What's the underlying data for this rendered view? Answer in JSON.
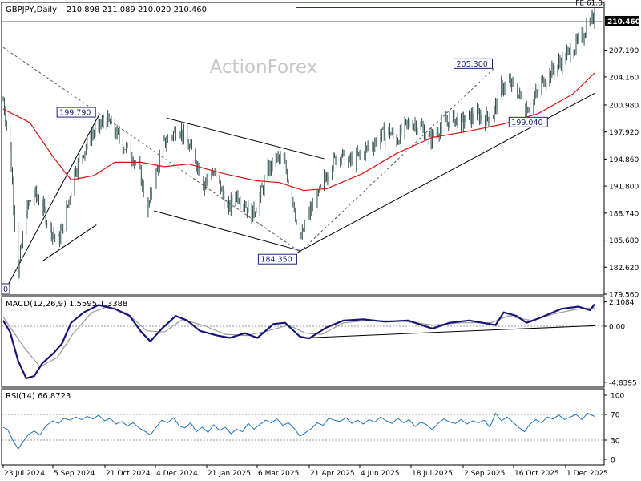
{
  "chart_data": {
    "type": "line",
    "title": "GBPJPY,Daily",
    "ohlc": "210.898 211.089 210.020 210.460",
    "watermark": "ActionForex",
    "x_range": [
      "2024-07-23",
      "2025-12-19"
    ],
    "x_ticks": [
      "23 Jul 2024",
      "5 Sep 2024",
      "21 Oct 2024",
      "4 Dec 2024",
      "21 Jan 2025",
      "6 Mar 2025",
      "21 Apr 2025",
      "4 Jun 2025",
      "18 Jul 2025",
      "2 Sep 2025",
      "16 Oct 2025",
      "1 Dec 2025"
    ],
    "price": {
      "ylim": [
        179.56,
        212.5
      ],
      "y_ticks": [
        "207.190",
        "204.160",
        "200.980",
        "197.920",
        "194.860",
        "191.800",
        "188.740",
        "185.680",
        "182.620",
        "179.560"
      ],
      "last_price": "210.460",
      "fe_label": "FE 61.8",
      "fe_level": 212.0,
      "annotations": [
        {
          "label": "199.790",
          "date": "2024-10-14",
          "value": 199.79
        },
        {
          "label": "184.350",
          "date": "2025-04-07",
          "value": 184.35
        },
        {
          "label": "205.300",
          "date": "2025-09-24",
          "value": 205.3
        },
        {
          "label": "199.040",
          "date": "2025-10-21",
          "value": 199.04
        }
      ],
      "close": [
        [
          "2024-07-23",
          201.5
        ],
        [
          "2024-07-29",
          196.0
        ],
        [
          "2024-08-05",
          182.0
        ],
        [
          "2024-08-12",
          189.0
        ],
        [
          "2024-08-19",
          191.0
        ],
        [
          "2024-08-26",
          189.5
        ],
        [
          "2024-09-02",
          187.0
        ],
        [
          "2024-09-09",
          185.5
        ],
        [
          "2024-09-16",
          189.0
        ],
        [
          "2024-09-23",
          193.5
        ],
        [
          "2024-09-30",
          195.5
        ],
        [
          "2024-10-07",
          197.5
        ],
        [
          "2024-10-14",
          198.5
        ],
        [
          "2024-10-21",
          199.3
        ],
        [
          "2024-10-28",
          198.0
        ],
        [
          "2024-11-04",
          196.5
        ],
        [
          "2024-11-11",
          195.5
        ],
        [
          "2024-11-18",
          194.0
        ],
        [
          "2024-11-25",
          189.0
        ],
        [
          "2024-12-02",
          192.5
        ],
        [
          "2024-12-09",
          196.5
        ],
        [
          "2024-12-16",
          197.5
        ],
        [
          "2024-12-23",
          198.5
        ],
        [
          "2024-12-30",
          196.5
        ],
        [
          "2025-01-06",
          195.0
        ],
        [
          "2025-01-13",
          192.0
        ],
        [
          "2025-01-20",
          193.5
        ],
        [
          "2025-01-27",
          192.0
        ],
        [
          "2025-02-03",
          189.0
        ],
        [
          "2025-02-10",
          191.0
        ],
        [
          "2025-02-17",
          190.0
        ],
        [
          "2025-02-24",
          188.5
        ],
        [
          "2025-03-03",
          190.5
        ],
        [
          "2025-03-10",
          193.5
        ],
        [
          "2025-03-17",
          195.0
        ],
        [
          "2025-03-24",
          194.5
        ],
        [
          "2025-03-31",
          191.0
        ],
        [
          "2025-04-07",
          185.5
        ],
        [
          "2025-04-14",
          188.5
        ],
        [
          "2025-04-21",
          190.0
        ],
        [
          "2025-04-28",
          192.5
        ],
        [
          "2025-05-05",
          194.5
        ],
        [
          "2025-05-12",
          195.5
        ],
        [
          "2025-05-19",
          194.5
        ],
        [
          "2025-05-26",
          195.0
        ],
        [
          "2025-06-02",
          195.8
        ],
        [
          "2025-06-09",
          196.5
        ],
        [
          "2025-06-16",
          197.5
        ],
        [
          "2025-06-23",
          198.0
        ],
        [
          "2025-06-30",
          197.0
        ],
        [
          "2025-07-07",
          198.5
        ],
        [
          "2025-07-14",
          199.0
        ],
        [
          "2025-07-21",
          198.5
        ],
        [
          "2025-07-28",
          197.0
        ],
        [
          "2025-08-04",
          198.0
        ],
        [
          "2025-08-11",
          199.0
        ],
        [
          "2025-08-18",
          199.5
        ],
        [
          "2025-08-25",
          199.0
        ],
        [
          "2025-09-01",
          199.5
        ],
        [
          "2025-09-08",
          199.8
        ],
        [
          "2025-09-15",
          199.5
        ],
        [
          "2025-09-22",
          200.0
        ],
        [
          "2025-09-29",
          203.0
        ],
        [
          "2025-10-06",
          203.5
        ],
        [
          "2025-10-13",
          202.5
        ],
        [
          "2025-10-20",
          200.5
        ],
        [
          "2025-10-27",
          201.5
        ],
        [
          "2025-11-03",
          203.5
        ],
        [
          "2025-11-10",
          204.5
        ],
        [
          "2025-11-17",
          205.5
        ],
        [
          "2025-11-24",
          206.5
        ],
        [
          "2025-12-01",
          207.5
        ],
        [
          "2025-12-08",
          208.5
        ],
        [
          "2025-12-15",
          211.0
        ],
        [
          "2025-12-19",
          210.5
        ]
      ],
      "ma": [
        [
          "2024-07-23",
          200.5
        ],
        [
          "2024-08-15",
          199.0
        ],
        [
          "2024-09-05",
          195.0
        ],
        [
          "2024-09-20",
          192.5
        ],
        [
          "2024-10-10",
          193.0
        ],
        [
          "2024-10-28",
          194.5
        ],
        [
          "2024-11-20",
          194.5
        ],
        [
          "2024-12-10",
          194.0
        ],
        [
          "2024-12-31",
          194.3
        ],
        [
          "2025-01-31",
          193.2
        ],
        [
          "2025-02-28",
          192.4
        ],
        [
          "2025-03-20",
          192.2
        ],
        [
          "2025-04-10",
          191.3
        ],
        [
          "2025-04-30",
          191.5
        ],
        [
          "2025-05-31",
          193.2
        ],
        [
          "2025-06-30",
          195.5
        ],
        [
          "2025-07-31",
          197.3
        ],
        [
          "2025-08-31",
          198.0
        ],
        [
          "2025-09-30",
          198.8
        ],
        [
          "2025-10-31",
          200.0
        ],
        [
          "2025-11-30",
          202.2
        ],
        [
          "2025-12-19",
          204.6
        ]
      ],
      "trend_lines": [
        {
          "style": "solid",
          "from": [
            "2024-07-23",
            179.6
          ],
          "to": [
            "2024-10-14",
            199.8
          ]
        },
        {
          "style": "solid",
          "from": [
            "2024-08-26",
            183.3
          ],
          "to": [
            "2024-10-12",
            187.4
          ]
        },
        {
          "style": "solid",
          "from": [
            "2024-12-12",
            199.5
          ],
          "to": [
            "2025-04-28",
            194.9
          ]
        },
        {
          "style": "solid",
          "from": [
            "2024-12-01",
            189.0
          ],
          "to": [
            "2025-04-07",
            184.5
          ]
        },
        {
          "style": "solid",
          "from": [
            "2025-04-05",
            184.3
          ],
          "to": [
            "2025-12-19",
            202.3
          ]
        },
        {
          "style": "dashed",
          "from": [
            "2024-07-23",
            207.5
          ],
          "to": [
            "2025-04-07",
            184.35
          ]
        },
        {
          "style": "dashed",
          "from": [
            "2025-04-07",
            184.35
          ],
          "to": [
            "2025-09-24",
            205.3
          ]
        }
      ]
    },
    "macd": {
      "label": "MACD(12,26,9) 1.5595 1.3388",
      "ylim": [
        -5.2,
        2.5
      ],
      "y_ticks": [
        "2.1084",
        "0.00",
        "-4.8395"
      ],
      "main": [
        [
          "2024-07-23",
          0.5
        ],
        [
          "2024-07-29",
          -0.5
        ],
        [
          "2024-08-05",
          -3.0
        ],
        [
          "2024-08-12",
          -4.5
        ],
        [
          "2024-08-19",
          -4.3
        ],
        [
          "2024-08-26",
          -3.2
        ],
        [
          "2024-09-05",
          -2.3
        ],
        [
          "2024-09-12",
          -1.5
        ],
        [
          "2024-09-20",
          0.3
        ],
        [
          "2024-10-01",
          1.2
        ],
        [
          "2024-10-14",
          1.85
        ],
        [
          "2024-10-28",
          1.5
        ],
        [
          "2024-11-10",
          0.9
        ],
        [
          "2024-11-20",
          -0.5
        ],
        [
          "2024-11-28",
          -1.3
        ],
        [
          "2024-12-08",
          -0.2
        ],
        [
          "2024-12-20",
          0.9
        ],
        [
          "2024-12-30",
          0.5
        ],
        [
          "2025-01-10",
          -0.4
        ],
        [
          "2025-01-25",
          -0.8
        ],
        [
          "2025-02-05",
          -1.0
        ],
        [
          "2025-02-18",
          -0.6
        ],
        [
          "2025-03-01",
          -1.0
        ],
        [
          "2025-03-15",
          0.2
        ],
        [
          "2025-03-25",
          0.3
        ],
        [
          "2025-04-07",
          -0.9
        ],
        [
          "2025-04-15",
          -1.05
        ],
        [
          "2025-04-30",
          -0.1
        ],
        [
          "2025-05-15",
          0.5
        ],
        [
          "2025-06-01",
          0.6
        ],
        [
          "2025-06-20",
          0.4
        ],
        [
          "2025-07-10",
          0.5
        ],
        [
          "2025-07-31",
          -0.2
        ],
        [
          "2025-08-15",
          0.3
        ],
        [
          "2025-09-01",
          0.5
        ],
        [
          "2025-09-24",
          0.1
        ],
        [
          "2025-10-01",
          1.2
        ],
        [
          "2025-10-12",
          0.9
        ],
        [
          "2025-10-21",
          0.3
        ],
        [
          "2025-11-01",
          0.7
        ],
        [
          "2025-11-20",
          1.5
        ],
        [
          "2025-12-05",
          1.7
        ],
        [
          "2025-12-15",
          1.4
        ],
        [
          "2025-12-19",
          1.9
        ]
      ],
      "signal": [
        [
          "2024-07-23",
          0.8
        ],
        [
          "2024-08-10",
          -1.8
        ],
        [
          "2024-08-24",
          -3.5
        ],
        [
          "2024-09-08",
          -2.7
        ],
        [
          "2024-09-22",
          -0.6
        ],
        [
          "2024-10-08",
          1.2
        ],
        [
          "2024-10-22",
          1.7
        ],
        [
          "2024-11-08",
          1.1
        ],
        [
          "2024-11-25",
          -0.4
        ],
        [
          "2024-12-10",
          -0.5
        ],
        [
          "2024-12-26",
          0.6
        ],
        [
          "2025-01-15",
          0.0
        ],
        [
          "2025-02-01",
          -0.7
        ],
        [
          "2025-02-20",
          -0.8
        ],
        [
          "2025-03-10",
          -0.4
        ],
        [
          "2025-03-28",
          0.1
        ],
        [
          "2025-04-12",
          -0.6
        ],
        [
          "2025-04-26",
          -0.7
        ],
        [
          "2025-05-15",
          0.3
        ],
        [
          "2025-06-05",
          0.5
        ],
        [
          "2025-07-05",
          0.45
        ],
        [
          "2025-08-01",
          0.1
        ],
        [
          "2025-08-25",
          0.3
        ],
        [
          "2025-09-20",
          0.3
        ],
        [
          "2025-10-05",
          0.9
        ],
        [
          "2025-10-25",
          0.5
        ],
        [
          "2025-11-15",
          1.1
        ],
        [
          "2025-12-05",
          1.5
        ],
        [
          "2025-12-19",
          1.6
        ]
      ],
      "trend_line": {
        "from": [
          "2025-04-12",
          -1.0
        ],
        "to": [
          "2025-12-19",
          0.05
        ]
      }
    },
    "rsi": {
      "label": "RSI(14) 66.8723",
      "ylim": [
        0,
        100
      ],
      "y_ticks": [
        "100",
        "70",
        "30",
        "0"
      ],
      "levels": [
        70,
        30
      ],
      "values": [
        [
          "2024-07-23",
          50
        ],
        [
          "2024-07-27",
          46
        ],
        [
          "2024-08-01",
          28
        ],
        [
          "2024-08-05",
          16
        ],
        [
          "2024-08-09",
          27
        ],
        [
          "2024-08-14",
          39
        ],
        [
          "2024-08-19",
          44
        ],
        [
          "2024-08-24",
          38
        ],
        [
          "2024-08-29",
          52
        ],
        [
          "2024-09-04",
          60
        ],
        [
          "2024-09-09",
          56
        ],
        [
          "2024-09-14",
          64
        ],
        [
          "2024-09-19",
          61
        ],
        [
          "2024-09-24",
          66
        ],
        [
          "2024-09-29",
          62
        ],
        [
          "2024-10-04",
          67
        ],
        [
          "2024-10-09",
          63
        ],
        [
          "2024-10-14",
          69
        ],
        [
          "2024-10-19",
          60
        ],
        [
          "2024-10-24",
          64
        ],
        [
          "2024-10-29",
          55
        ],
        [
          "2024-11-03",
          59
        ],
        [
          "2024-11-08",
          52
        ],
        [
          "2024-11-13",
          57
        ],
        [
          "2024-11-18",
          49
        ],
        [
          "2024-11-23",
          44
        ],
        [
          "2024-11-28",
          38
        ],
        [
          "2024-12-03",
          50
        ],
        [
          "2024-12-08",
          61
        ],
        [
          "2024-12-13",
          57
        ],
        [
          "2024-12-18",
          65
        ],
        [
          "2024-12-23",
          52
        ],
        [
          "2024-12-28",
          49
        ],
        [
          "2025-01-02",
          57
        ],
        [
          "2025-01-07",
          43
        ],
        [
          "2025-01-12",
          50
        ],
        [
          "2025-01-17",
          42
        ],
        [
          "2025-01-22",
          54
        ],
        [
          "2025-01-27",
          45
        ],
        [
          "2025-02-01",
          50
        ],
        [
          "2025-02-06",
          40
        ],
        [
          "2025-02-11",
          47
        ],
        [
          "2025-02-16",
          43
        ],
        [
          "2025-02-21",
          56
        ],
        [
          "2025-02-26",
          47
        ],
        [
          "2025-03-03",
          54
        ],
        [
          "2025-03-08",
          61
        ],
        [
          "2025-03-13",
          57
        ],
        [
          "2025-03-18",
          63
        ],
        [
          "2025-03-23",
          53
        ],
        [
          "2025-03-28",
          57
        ],
        [
          "2025-04-02",
          48
        ],
        [
          "2025-04-07",
          36
        ],
        [
          "2025-04-12",
          42
        ],
        [
          "2025-04-17",
          48
        ],
        [
          "2025-04-22",
          57
        ],
        [
          "2025-04-27",
          53
        ],
        [
          "2025-05-02",
          64
        ],
        [
          "2025-05-07",
          61
        ],
        [
          "2025-05-12",
          59
        ],
        [
          "2025-05-17",
          65
        ],
        [
          "2025-05-22",
          56
        ],
        [
          "2025-05-27",
          61
        ],
        [
          "2025-06-01",
          55
        ],
        [
          "2025-06-06",
          62
        ],
        [
          "2025-06-11",
          58
        ],
        [
          "2025-06-16",
          66
        ],
        [
          "2025-06-21",
          60
        ],
        [
          "2025-06-26",
          56
        ],
        [
          "2025-07-01",
          64
        ],
        [
          "2025-07-06",
          57
        ],
        [
          "2025-07-11",
          62
        ],
        [
          "2025-07-16",
          51
        ],
        [
          "2025-07-21",
          58
        ],
        [
          "2025-07-26",
          54
        ],
        [
          "2025-07-31",
          46
        ],
        [
          "2025-08-05",
          56
        ],
        [
          "2025-08-10",
          63
        ],
        [
          "2025-08-15",
          58
        ],
        [
          "2025-08-20",
          56
        ],
        [
          "2025-08-25",
          62
        ],
        [
          "2025-08-30",
          55
        ],
        [
          "2025-09-04",
          60
        ],
        [
          "2025-09-09",
          57
        ],
        [
          "2025-09-14",
          61
        ],
        [
          "2025-09-19",
          50
        ],
        [
          "2025-09-24",
          72
        ],
        [
          "2025-09-29",
          60
        ],
        [
          "2025-10-04",
          66
        ],
        [
          "2025-10-09",
          58
        ],
        [
          "2025-10-14",
          50
        ],
        [
          "2025-10-19",
          43
        ],
        [
          "2025-10-24",
          55
        ],
        [
          "2025-10-29",
          62
        ],
        [
          "2025-11-03",
          57
        ],
        [
          "2025-11-08",
          66
        ],
        [
          "2025-11-13",
          63
        ],
        [
          "2025-11-18",
          69
        ],
        [
          "2025-11-23",
          62
        ],
        [
          "2025-11-28",
          66
        ],
        [
          "2025-12-03",
          70
        ],
        [
          "2025-12-08",
          62
        ],
        [
          "2025-12-13",
          72
        ],
        [
          "2025-12-19",
          67
        ]
      ]
    }
  }
}
